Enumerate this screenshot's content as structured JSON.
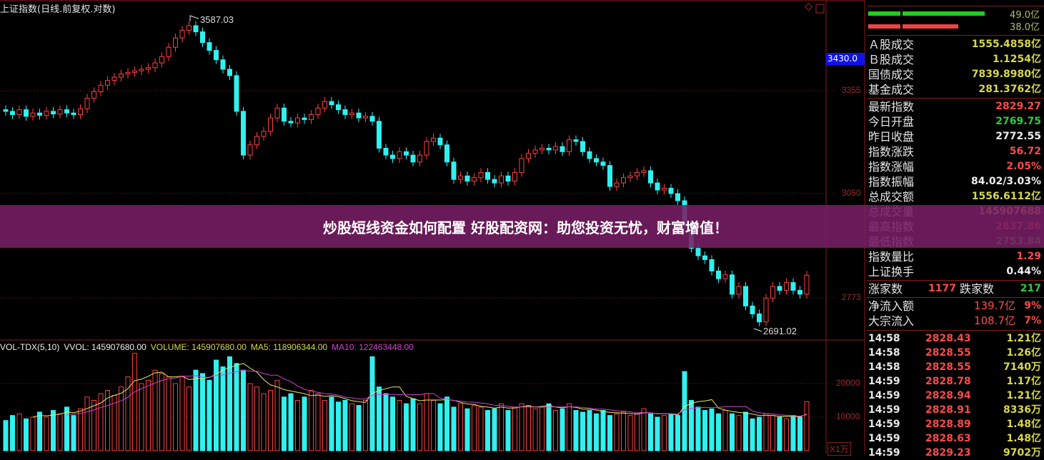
{
  "header": {
    "title": "上证指数(日线.前复权.对数)",
    "current_price_tag": "3430.0"
  },
  "price_axis": {
    "labels": [
      "3355",
      "3050",
      "2773"
    ],
    "scale": "log"
  },
  "annotations": {
    "high": "3587.03",
    "low": "2691.02"
  },
  "volume_header": {
    "indicator": "VOL-TDX(5,10)",
    "vvol": "VVOL: 145907680.00",
    "volume": "VOLUME: 145907680.00",
    "ma5": "MA5: 118906344.00",
    "ma10": "MA10: 122463448.00"
  },
  "volume_axis": {
    "labels": [
      "20000",
      "10000"
    ],
    "unit": "X1万"
  },
  "colors": {
    "up": "#ff4040",
    "down": "#30f0f0",
    "grid": "#8a1a1a",
    "ma5": "#e8e860",
    "ma10": "#d040d0",
    "banner": "#781e64"
  },
  "chart_data": {
    "type": "candlestick",
    "y_scale": "log",
    "close": [
      3290,
      3280,
      3295,
      3275,
      3285,
      3278,
      3290,
      3282,
      3295,
      3285,
      3280,
      3298,
      3330,
      3350,
      3370,
      3385,
      3395,
      3405,
      3410,
      3415,
      3420,
      3425,
      3440,
      3460,
      3490,
      3520,
      3545,
      3560,
      3540,
      3505,
      3480,
      3450,
      3420,
      3400,
      3290,
      3160,
      3190,
      3215,
      3230,
      3270,
      3300,
      3260,
      3255,
      3270,
      3265,
      3280,
      3300,
      3320,
      3310,
      3295,
      3280,
      3285,
      3270,
      3275,
      3260,
      3180,
      3160,
      3150,
      3170,
      3160,
      3140,
      3160,
      3200,
      3210,
      3190,
      3140,
      3090,
      3100,
      3085,
      3095,
      3110,
      3090,
      3080,
      3100,
      3085,
      3110,
      3150,
      3165,
      3175,
      3180,
      3175,
      3185,
      3170,
      3205,
      3200,
      3170,
      3150,
      3140,
      3130,
      3070,
      3080,
      3095,
      3100,
      3110,
      3115,
      3080,
      3060,
      3065,
      3050,
      3030,
      2960,
      2900,
      2880,
      2870,
      2840,
      2820,
      2830,
      2780,
      2800,
      2750,
      2730,
      2710,
      2770,
      2800,
      2790,
      2810,
      2790,
      2780,
      2829
    ],
    "volume_wan": [
      9000,
      10500,
      11000,
      9500,
      10000,
      11500,
      10000,
      12000,
      11000,
      13000,
      10500,
      12500,
      16000,
      15000,
      17000,
      18000,
      16500,
      19000,
      22000,
      29000,
      20000,
      21000,
      24000,
      23000,
      22000,
      20000,
      22000,
      19000,
      24000,
      23000,
      21000,
      27000,
      25000,
      28000,
      26000,
      24000,
      20000,
      19000,
      17000,
      18000,
      21000,
      16000,
      17000,
      15000,
      16000,
      18000,
      17000,
      15000,
      16000,
      14500,
      15000,
      14000,
      13500,
      15000,
      28000,
      19000,
      17000,
      16000,
      15000,
      14000,
      15500,
      14000,
      17000,
      15000,
      14000,
      16000,
      13000,
      14000,
      12500,
      13500,
      13000,
      12000,
      12500,
      14000,
      12000,
      13000,
      14000,
      13500,
      12500,
      13000,
      14000,
      12000,
      12500,
      14000,
      12000,
      11500,
      12000,
      11000,
      12000,
      10500,
      11000,
      11500,
      10500,
      11000,
      12500,
      11000,
      10000,
      10500,
      11000,
      10500,
      23600,
      15000,
      13000,
      12000,
      12500,
      11000,
      12000,
      11000,
      10500,
      11500,
      9500,
      10000,
      11000,
      10500,
      10000,
      9500,
      10500,
      10000,
      14590
    ]
  },
  "panel": {
    "bar_values": [
      "49.0亿",
      "38.0亿"
    ],
    "market": [
      {
        "label": "Ａ股成交",
        "value": "1555.4858亿"
      },
      {
        "label": "Ｂ股成交",
        "value": "1.1254亿"
      },
      {
        "label": "国债成交",
        "value": "7839.8980亿"
      },
      {
        "label": "基金成交",
        "value": "281.3762亿"
      }
    ],
    "stats": [
      {
        "label": "最新指数",
        "value": "2829.27",
        "color": "r"
      },
      {
        "label": "今日开盘",
        "value": "2769.75",
        "color": "g"
      },
      {
        "label": "昨日收盘",
        "value": "2772.55",
        "color": "w"
      },
      {
        "label": "指数涨跌",
        "value": "56.72",
        "color": "r"
      },
      {
        "label": "指数涨幅",
        "value": "2.05%",
        "color": "r"
      },
      {
        "label": "指数振幅",
        "value": "84.02/3.03%",
        "color": "w"
      },
      {
        "label": "总成交额",
        "value": "1556.6112亿",
        "color": "y"
      },
      {
        "label": "总成交量",
        "value": "145907688",
        "color": "y"
      },
      {
        "label": "最高指数",
        "value": "2837.86",
        "color": "r"
      },
      {
        "label": "最低指数",
        "value": "2753.84",
        "color": "g"
      },
      {
        "label": "指数量比",
        "value": "1.29",
        "color": "r"
      },
      {
        "label": "上证换手",
        "value": "0.44%",
        "color": "w"
      }
    ],
    "breadth": {
      "up_label": "涨家数",
      "up_value": "1177",
      "down_label": "跌家数",
      "down_value": "217"
    },
    "flows": [
      {
        "label": "净流入额",
        "amount": "139.7亿",
        "pct": "9%"
      },
      {
        "label": "大宗流入",
        "amount": "108.7亿",
        "pct": "7%"
      }
    ],
    "ticks": [
      {
        "time": "14:58",
        "price": "2828.43",
        "vol": "1.21亿"
      },
      {
        "time": "14:58",
        "price": "2828.55",
        "vol": "1.26亿"
      },
      {
        "time": "14:58",
        "price": "2828.55",
        "vol": "7140万"
      },
      {
        "time": "14:59",
        "price": "2828.78",
        "vol": "1.17亿"
      },
      {
        "time": "14:59",
        "price": "2828.94",
        "vol": "1.21亿"
      },
      {
        "time": "14:59",
        "price": "2828.91",
        "vol": "8336万"
      },
      {
        "time": "14:59",
        "price": "2828.89",
        "vol": "1.48亿"
      },
      {
        "time": "14:59",
        "price": "2828.63",
        "vol": "1.48亿"
      },
      {
        "time": "14:59",
        "price": "2829.23",
        "vol": "9702万"
      }
    ]
  },
  "banner": {
    "text": "炒股短线资金如何配置 好股配资网：助您投资无忧，财富增值！"
  }
}
